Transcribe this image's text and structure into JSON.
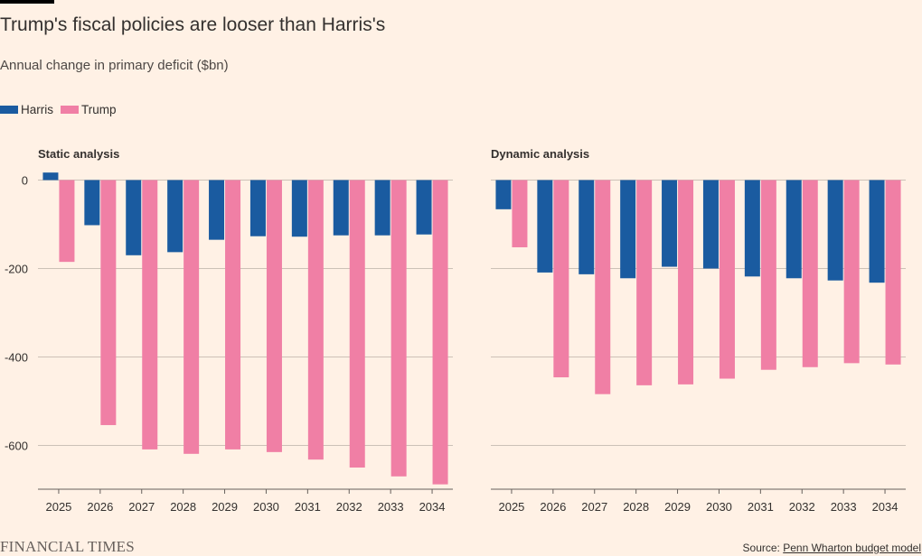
{
  "header": {
    "title": "Trump's fiscal policies are looser than Harris's",
    "subtitle": "Annual change in primary deficit ($bn)"
  },
  "legend": [
    {
      "label": "Harris",
      "color": "#1a5ba0"
    },
    {
      "label": "Trump",
      "color": "#f07fa5"
    }
  ],
  "footer": {
    "brand": "FINANCIAL TIMES",
    "source_prefix": "Source: ",
    "source_link": "Penn Wharton budget model"
  },
  "chart_data": [
    {
      "type": "bar",
      "title": "Static analysis",
      "categories": [
        "2025",
        "2026",
        "2027",
        "2028",
        "2029",
        "2030",
        "2031",
        "2032",
        "2033",
        "2034"
      ],
      "series": [
        {
          "name": "Harris",
          "color": "#1a5ba0",
          "values": [
            17,
            -102,
            -170,
            -163,
            -135,
            -127,
            -128,
            -125,
            -125,
            -123
          ]
        },
        {
          "name": "Trump",
          "color": "#f07fa5",
          "values": [
            -185,
            -554,
            -609,
            -619,
            -609,
            -615,
            -632,
            -650,
            -670,
            -688
          ]
        }
      ],
      "yticks": [
        0,
        -200,
        -400,
        -600
      ],
      "ytick_labels": [
        "0",
        "-200",
        "-400",
        "-600"
      ],
      "ylim": [
        -700,
        20
      ],
      "grid": true
    },
    {
      "type": "bar",
      "title": "Dynamic analysis",
      "categories": [
        "2025",
        "2026",
        "2027",
        "2028",
        "2029",
        "2030",
        "2031",
        "2032",
        "2033",
        "2034"
      ],
      "series": [
        {
          "name": "Harris",
          "color": "#1a5ba0",
          "values": [
            -66,
            -209,
            -213,
            -222,
            -196,
            -200,
            -218,
            -222,
            -227,
            -232
          ]
        },
        {
          "name": "Trump",
          "color": "#f07fa5",
          "values": [
            -152,
            -446,
            -484,
            -464,
            -462,
            -449,
            -429,
            -423,
            -414,
            -417
          ]
        }
      ],
      "yticks": [
        0,
        -200,
        -400,
        -600
      ],
      "ytick_labels": [
        "",
        "",
        "",
        ""
      ],
      "ylim": [
        -700,
        20
      ],
      "grid": true
    }
  ]
}
